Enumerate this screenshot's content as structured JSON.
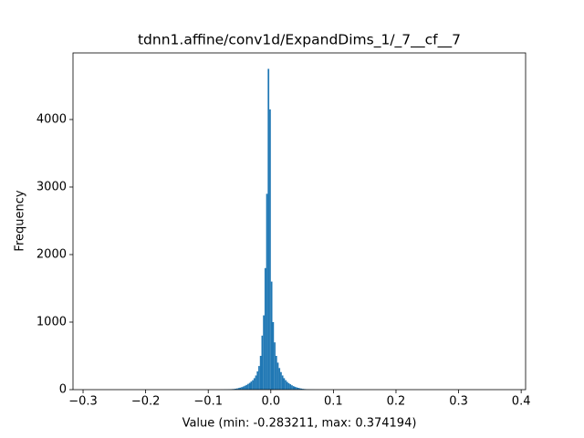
{
  "chart_data": {
    "type": "histogram",
    "title": "tdnn1.affine/conv1d/ExpandDims_1/_7__cf__7",
    "xlabel": "Value (min: -0.283211, max: 0.374194)",
    "ylabel": "Frequency",
    "color": "#1f77b4",
    "bins": [
      -0.283211,
      -0.08,
      -0.0775,
      -0.075,
      -0.0725,
      -0.07,
      -0.0675,
      -0.065,
      -0.0625,
      -0.06,
      -0.0575,
      -0.055,
      -0.0525,
      -0.05,
      -0.0475,
      -0.045,
      -0.0425,
      -0.04,
      -0.0375,
      -0.035,
      -0.0325,
      -0.03,
      -0.0275,
      -0.025,
      -0.0225,
      -0.02,
      -0.0175,
      -0.015,
      -0.0125,
      -0.01,
      -0.0075,
      -0.005,
      -0.0025,
      0,
      0.0025,
      0.005,
      0.0075,
      0.01,
      0.0125,
      0.015,
      0.0175,
      0.02,
      0.0225,
      0.025,
      0.0275,
      0.03,
      0.0325,
      0.035,
      0.0375,
      0.04,
      0.0425,
      0.045,
      0.0475,
      0.05,
      0.0525,
      0.055,
      0.0575,
      0.06,
      0.0625,
      0.065,
      0.0675,
      0.07,
      0.0725,
      0.075,
      0.0775,
      0.08,
      0.374194
    ],
    "counts": [
      0,
      1,
      1,
      2,
      2,
      3,
      4,
      6,
      8,
      10,
      14,
      18,
      24,
      30,
      38,
      47,
      58,
      70,
      85,
      100,
      120,
      140,
      170,
      210,
      270,
      350,
      500,
      800,
      1100,
      1800,
      2900,
      4750,
      4150,
      1600,
      1000,
      700,
      500,
      400,
      320,
      260,
      210,
      170,
      140,
      115,
      95,
      80,
      65,
      52,
      42,
      34,
      27,
      21,
      16,
      12,
      9,
      7,
      5,
      4,
      3,
      2,
      2,
      1,
      1,
      1,
      0,
      0
    ],
    "xlim": [
      -0.31608,
      0.40707
    ],
    "ylim": [
      0,
      4986
    ],
    "xticks": [
      {
        "value": -0.3,
        "label": "−0.3"
      },
      {
        "value": -0.2,
        "label": "−0.2"
      },
      {
        "value": -0.1,
        "label": "−0.1"
      },
      {
        "value": 0,
        "label": "0.0"
      },
      {
        "value": 0.1,
        "label": "0.1"
      },
      {
        "value": 0.2,
        "label": "0.2"
      },
      {
        "value": 0.3,
        "label": "0.3"
      },
      {
        "value": 0.4,
        "label": "0.4"
      }
    ],
    "yticks": [
      0,
      1000,
      2000,
      3000,
      4000
    ]
  }
}
